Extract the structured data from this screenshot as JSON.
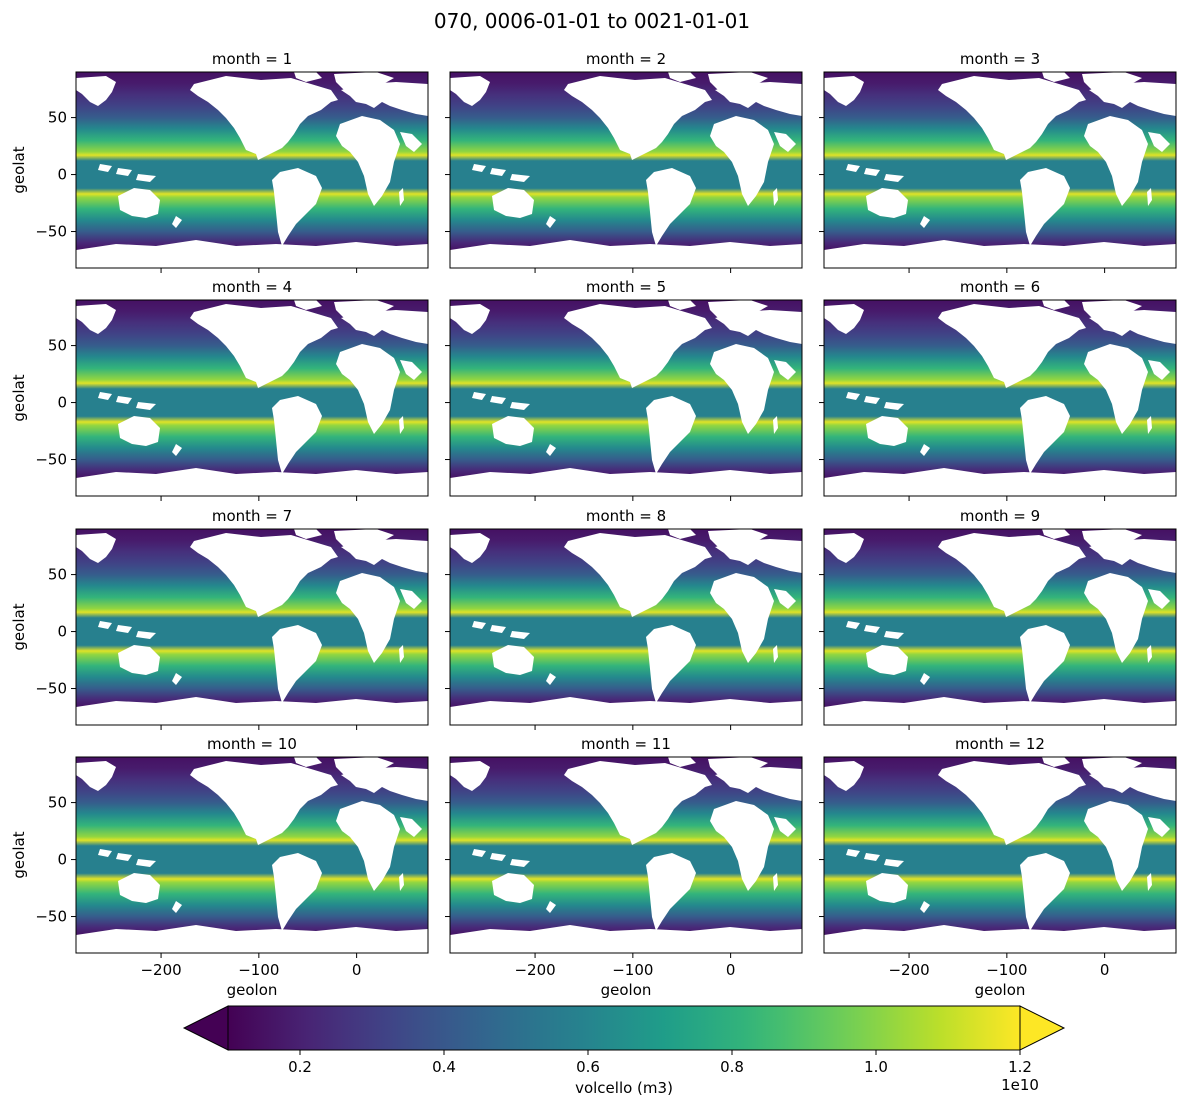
{
  "title": "070, 0006-01-01 to 0021-01-01",
  "chart_data": {
    "type": "heatmap",
    "variable": "volcello",
    "facet_dimension": "month",
    "panels": [
      {
        "label": "month = 1",
        "month": 1
      },
      {
        "label": "month = 2",
        "month": 2
      },
      {
        "label": "month = 3",
        "month": 3
      },
      {
        "label": "month = 4",
        "month": 4
      },
      {
        "label": "month = 5",
        "month": 5
      },
      {
        "label": "month = 6",
        "month": 6
      },
      {
        "label": "month = 7",
        "month": 7
      },
      {
        "label": "month = 8",
        "month": 8
      },
      {
        "label": "month = 9",
        "month": 9
      },
      {
        "label": "month = 10",
        "month": 10
      },
      {
        "label": "month = 11",
        "month": 11
      },
      {
        "label": "month = 12",
        "month": 12
      }
    ],
    "xlabel": "geolon",
    "ylabel": "geolat",
    "xlim": [
      -287,
      73
    ],
    "ylim": [
      -82,
      90
    ],
    "xticks": [
      -200,
      -100,
      0
    ],
    "xtick_labels": [
      "−200",
      "−100",
      "0"
    ],
    "yticks": [
      -50,
      0,
      50
    ],
    "ytick_labels": [
      "−50",
      "0",
      "50"
    ],
    "latitude_profile": {
      "lat": [
        -82,
        -70,
        -60,
        -50,
        -40,
        -30,
        -20,
        -17,
        -12,
        -8,
        8,
        12,
        17,
        20,
        30,
        40,
        50,
        60,
        70,
        80,
        90
      ],
      "value": [
        0.08,
        0.12,
        0.22,
        0.42,
        0.62,
        0.82,
        1.02,
        1.15,
        0.58,
        0.58,
        0.58,
        0.58,
        1.15,
        1.02,
        0.82,
        0.62,
        0.42,
        0.32,
        0.25,
        0.18,
        0.15
      ]
    },
    "value_scale": "1e10",
    "land_mask": "white",
    "colorbar": {
      "label": "volcello (m3)",
      "colormap": "viridis",
      "vmin": 0.1,
      "vmax": 1.2,
      "ticks": [
        0.2,
        0.4,
        0.6,
        0.8,
        1.0,
        1.2
      ],
      "tick_labels": [
        "0.2",
        "0.4",
        "0.6",
        "0.8",
        "1.0",
        "1.2"
      ],
      "offset_label": "1e10",
      "extend": "both"
    }
  }
}
